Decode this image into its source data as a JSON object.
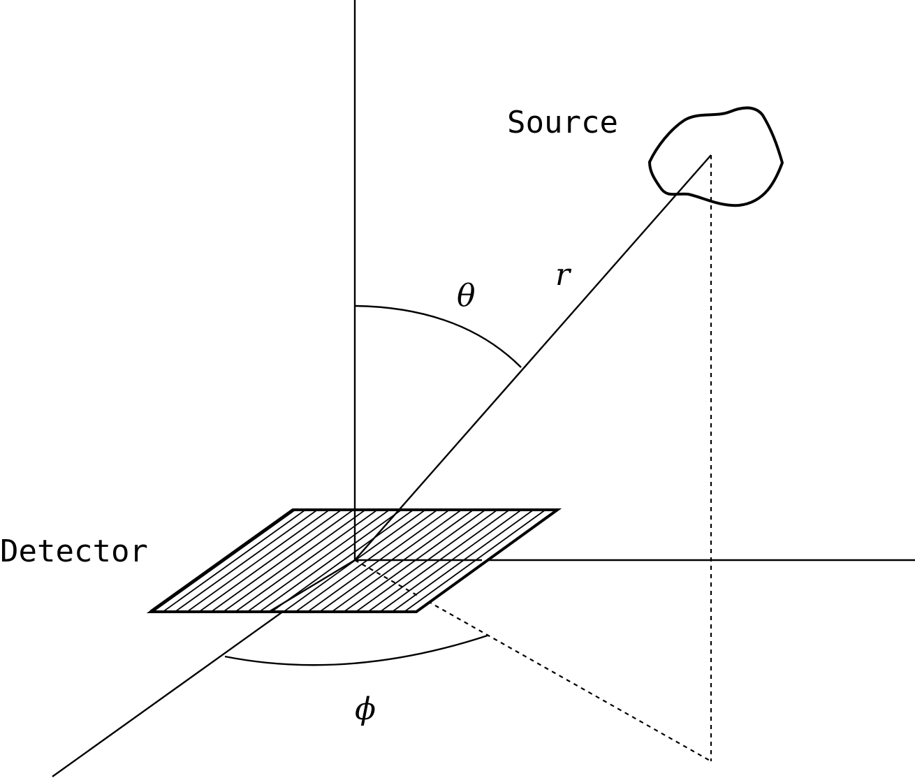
{
  "labels": {
    "source": "Source",
    "detector": "Detector",
    "theta": "θ",
    "r": "r",
    "phi": "ϕ"
  },
  "colors": {
    "stroke": "#000000",
    "background": "#ffffff"
  }
}
